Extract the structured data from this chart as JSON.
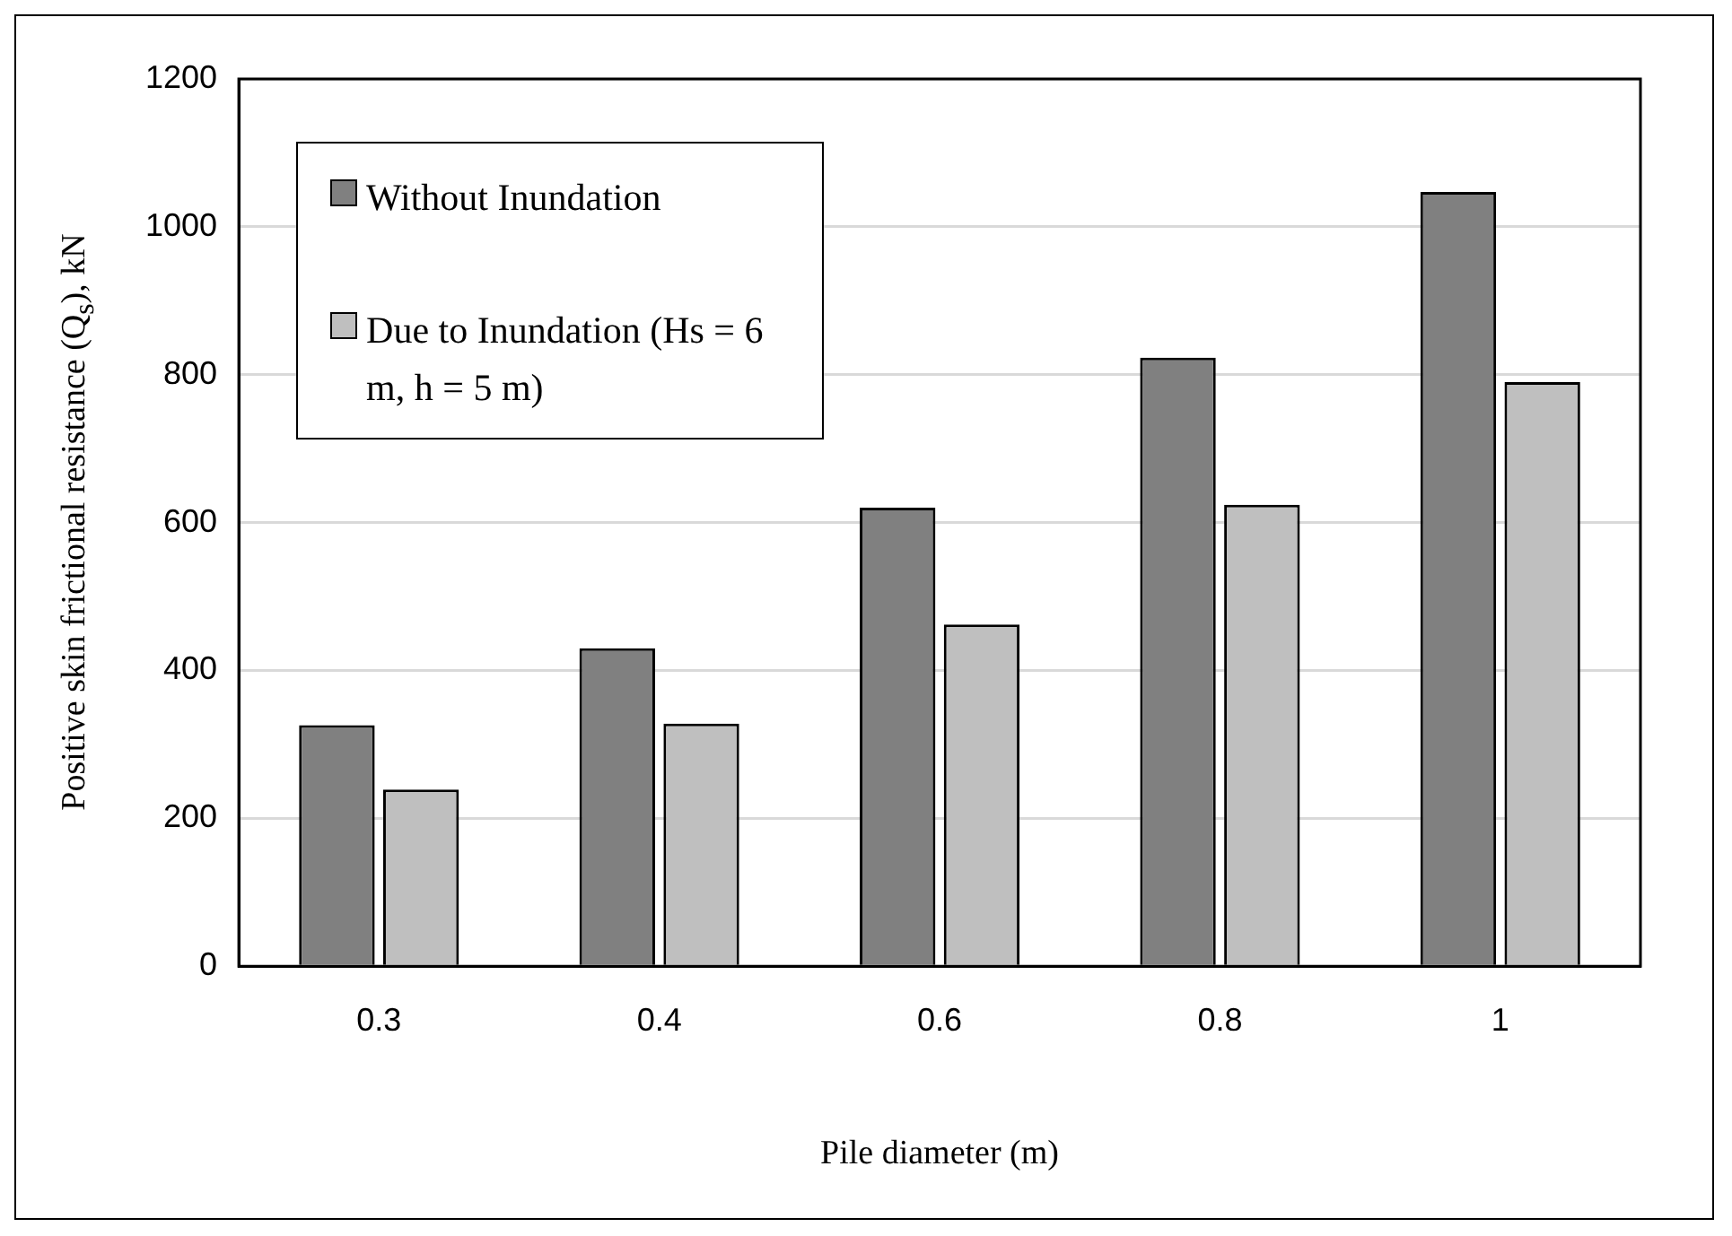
{
  "chart_data": {
    "type": "bar",
    "xlabel": "Pile diameter (m)",
    "ylabel": "Positive skin frictional resistance (Q$_{s}$), kN",
    "categories": [
      "0.3",
      "0.4",
      "0.6",
      "0.8",
      "1"
    ],
    "series": [
      {
        "name": "Without Inundation",
        "color": "#808080",
        "values": [
          326,
          430,
          620,
          823,
          1047
        ]
      },
      {
        "name": "Due to Inundation (Hs = 6 m, h = 5 m)",
        "color": "#bfbfbf",
        "values": [
          239,
          328,
          462,
          624,
          790
        ]
      }
    ],
    "ylim": [
      0,
      1200
    ],
    "yticks": [
      0,
      200,
      400,
      600,
      800,
      1000,
      1200
    ],
    "grid": "y",
    "legend": "top left"
  }
}
